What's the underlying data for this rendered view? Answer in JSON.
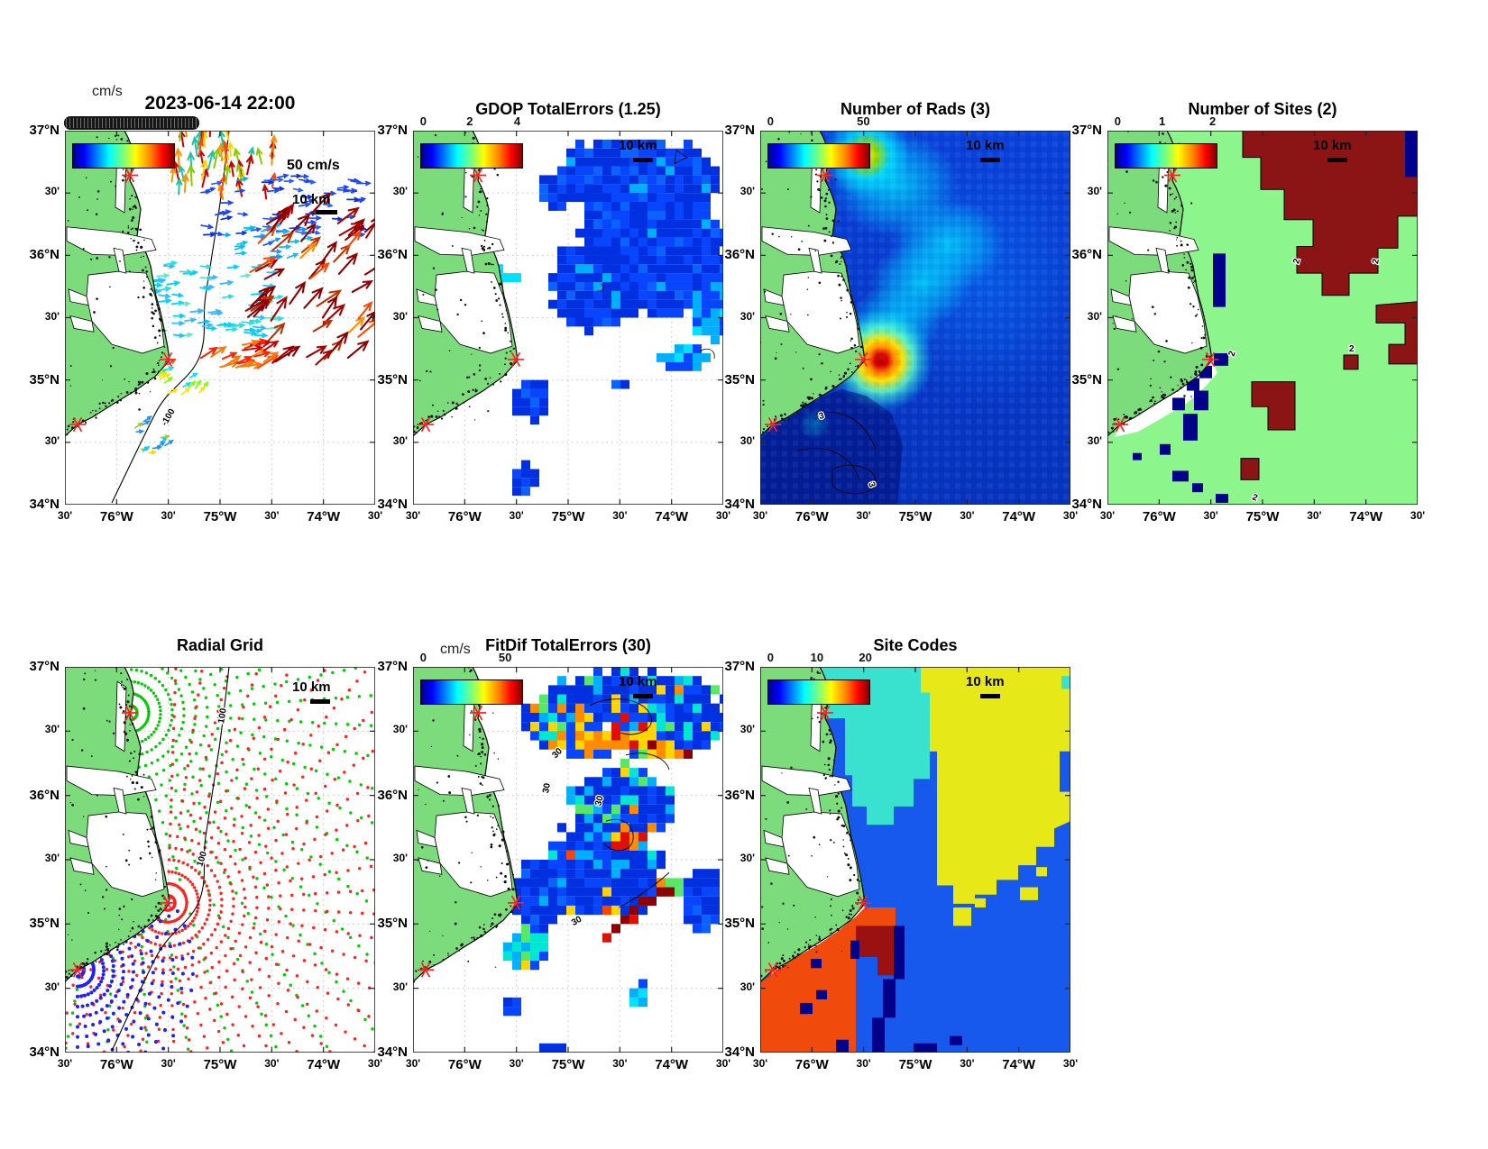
{
  "figure": {
    "background": "#ffffff",
    "description": "HF-radar surface current totals diagnostics, North Carolina Outer Banks / Cape Hatteras"
  },
  "axis": {
    "y_tick_labels": [
      "37°N",
      "30'",
      "36°N",
      "30'",
      "35°N",
      "30'",
      "34°N"
    ],
    "x_tick_labels": [
      "30'",
      "76°W",
      "30'",
      "75°W",
      "30'",
      "74°W",
      "30'"
    ]
  },
  "colors": {
    "land_green": "#7CDC7C",
    "ocean_white": "#FFFFFF",
    "site_marker_red": "#FF2020",
    "jet_stops": [
      "#00008F",
      "#0000FF",
      "#00FFFF",
      "#7DFF7A",
      "#FFFF00",
      "#FF8000",
      "#FF0000",
      "#800000"
    ],
    "site_codes": {
      "cyan": "#38E2CE",
      "yellow": "#E6E817",
      "blue": "#1659EC",
      "orange": "#F04A0C",
      "dark_red": "#9B1010",
      "dark_blue": "#00008B"
    },
    "number_of_sites": {
      "one_site": "#8CF58C",
      "two_sites": "#8B1414",
      "boundary": "#00008B"
    }
  },
  "panels": [
    {
      "id": "currents",
      "title": "2023-06-14 22:00",
      "colorbar_label": "cm/s",
      "colorbar_ticks_note": "overlapping tick labels 0–50 (illegible)",
      "ref_vector_label": "50 cm/s",
      "scale_label": "10 km",
      "contour_labels": [
        "-100"
      ]
    },
    {
      "id": "gdop",
      "title": "GDOP TotalErrors (1.25)",
      "colorbar_ticks": [
        {
          "label": "0",
          "pos": 0.03
        },
        {
          "label": "2",
          "pos": 0.49
        },
        {
          "label": "4",
          "pos": 0.96
        }
      ],
      "scale_label": "10 km",
      "contour_labels": []
    },
    {
      "id": "rads",
      "title": "Number of Rads (3)",
      "colorbar_ticks": [
        {
          "label": "0",
          "pos": 0.03
        },
        {
          "label": "50",
          "pos": 0.95
        }
      ],
      "scale_label": "10 km",
      "contour_labels": [
        "3"
      ]
    },
    {
      "id": "sites",
      "title": "Number of Sites (2)",
      "colorbar_ticks": [
        {
          "label": "0",
          "pos": 0.03
        },
        {
          "label": "1",
          "pos": 0.47
        },
        {
          "label": "2",
          "pos": 0.97
        }
      ],
      "scale_label": "10 km",
      "contour_labels": [
        "2"
      ]
    },
    {
      "id": "radial-grid",
      "title": "Radial Grid",
      "scale_label": "10 km",
      "contour_labels": [
        "100"
      ]
    },
    {
      "id": "fitdif",
      "title": "FitDif TotalErrors (30)",
      "colorbar_label": "cm/s",
      "colorbar_ticks": [
        {
          "label": "0",
          "pos": 0.03
        },
        {
          "label": "50",
          "pos": 0.84
        }
      ],
      "scale_label": "10 km",
      "contour_labels": [
        "30"
      ]
    },
    {
      "id": "site-codes",
      "title": "Site Codes",
      "colorbar_ticks": [
        {
          "label": "0",
          "pos": 0.03
        },
        {
          "label": "10",
          "pos": 0.49
        },
        {
          "label": "20",
          "pos": 0.97
        }
      ],
      "scale_label": "10 km",
      "contour_labels": []
    }
  ],
  "chart_data": [
    {
      "panel": "surface-currents",
      "type": "map-quiver",
      "title": "2023-06-14 22:00",
      "units": "cm/s",
      "colorbar_range": [
        0,
        50
      ],
      "reference_vector": "50 cm/s",
      "scale_bar": "10 km",
      "lat_range": [
        "34°N",
        "37°N"
      ],
      "lon_range": [
        "76.5°W",
        "73.5°W"
      ],
      "grid": "dotted graticule every 30 arcmin",
      "depth_contour_label": "-100",
      "radar_sites": 3,
      "description": "Total surface-current vectors: slow blue/cyan eastward vectors over the shelf north of Cape Hatteras, fast dark-red northeastward vectors (~50 cm/s) along the Gulf Stream edge, orange/red/yellow northward vectors near the northern data edge, small scattered clusters to the south"
    },
    {
      "panel": "gdop",
      "type": "map-heatmap",
      "title": "GDOP TotalErrors (1.25)",
      "threshold": 1.25,
      "colorbar_range": [
        0,
        4
      ],
      "colorbar_ticks": [
        0,
        2,
        4
      ],
      "scale_bar": "10 km",
      "description": "GDOP total-error field: pixelated patch of low values (~0.5–1.5, blue with scattered cyan) northeast of Cape Hatteras, small isolated blue blobs to the south"
    },
    {
      "panel": "number-of-rads",
      "type": "map-heatmap",
      "title": "Number of Rads (3)",
      "threshold": 3,
      "colorbar_range": [
        0,
        50
      ],
      "colorbar_ticks": [
        0,
        50
      ],
      "contour_label": "3",
      "scale_bar": "10 km",
      "description": "Radial-solution count over the whole domain: mostly 2–10 (blue), a cyan band (~15–25) stretching NE from Cape Hatteras, a red/yellow maximum (~45–50) just offshore of Cape Hatteras, a secondary yellow maximum near the northern site, darker blue with '3' contours in the southwest"
    },
    {
      "panel": "number-of-sites",
      "type": "map-classes",
      "title": "Number of Sites (2)",
      "threshold": 2,
      "colorbar_range": [
        0,
        2
      ],
      "colorbar_ticks": [
        0,
        1,
        2
      ],
      "contour_label": "2",
      "scale_bar": "10 km",
      "classes": [
        {
          "value": 1,
          "color": "light green",
          "area": "most of the domain"
        },
        {
          "value": 2,
          "color": "dark red",
          "area": "large lobe NE offshore plus patches south of Cape Hatteras"
        },
        {
          "value": "<1",
          "color": "dark blue",
          "area": "cells along the coast SW of Cape Hatteras and NE corner"
        }
      ]
    },
    {
      "panel": "radial-grid",
      "type": "map-scatter",
      "title": "Radial Grid",
      "scale_bar": "10 km",
      "depth_contour_label": "100",
      "series": [
        {
          "name": "northern radar site radial grid",
          "color": "#00CC00"
        },
        {
          "name": "Cape Hatteras radar site radial grid",
          "color": "#FF2020"
        },
        {
          "name": "southern radar site radial grid",
          "color": "#2020FF"
        }
      ],
      "description": "Polar measurement grids (range arcs × bearing rays) of three HF-radar sites marked by red asterisks; the 100 m isobath crosses the domain"
    },
    {
      "panel": "fitdif",
      "type": "map-heatmap",
      "title": "FitDif TotalErrors (30)",
      "threshold": 30,
      "units": "cm/s",
      "colorbar_range": [
        0,
        50
      ],
      "colorbar_ticks": [
        0,
        50
      ],
      "contour_label": "30",
      "scale_bar": "10 km",
      "description": "Fit-difference error: mostly 2–10 cm/s (blue) with cyan/green mixed cells, orange-to-dark-red patches exceeding the 30 cm/s contour along the northeastern data edge and in a diagonal streak near 35.5°N"
    },
    {
      "panel": "site-codes",
      "type": "map-classes",
      "title": "Site Codes",
      "colorbar_range": [
        0,
        20
      ],
      "colorbar_ticks": [
        0,
        10,
        20
      ],
      "scale_bar": "10 km",
      "classes": [
        {
          "color": "cyan",
          "area": "nearshore strip north of Cape Hatteras"
        },
        {
          "color": "yellow",
          "area": "large offshore region to the northeast"
        },
        {
          "color": "blue",
          "area": "offshore south and east"
        },
        {
          "color": "orange-red",
          "area": "nearshore southwest of Cape Hatteras"
        },
        {
          "color": "dark red",
          "area": "patch south of Cape Hatteras"
        },
        {
          "color": "dark blue",
          "area": "boundary cells between regions"
        }
      ]
    }
  ]
}
